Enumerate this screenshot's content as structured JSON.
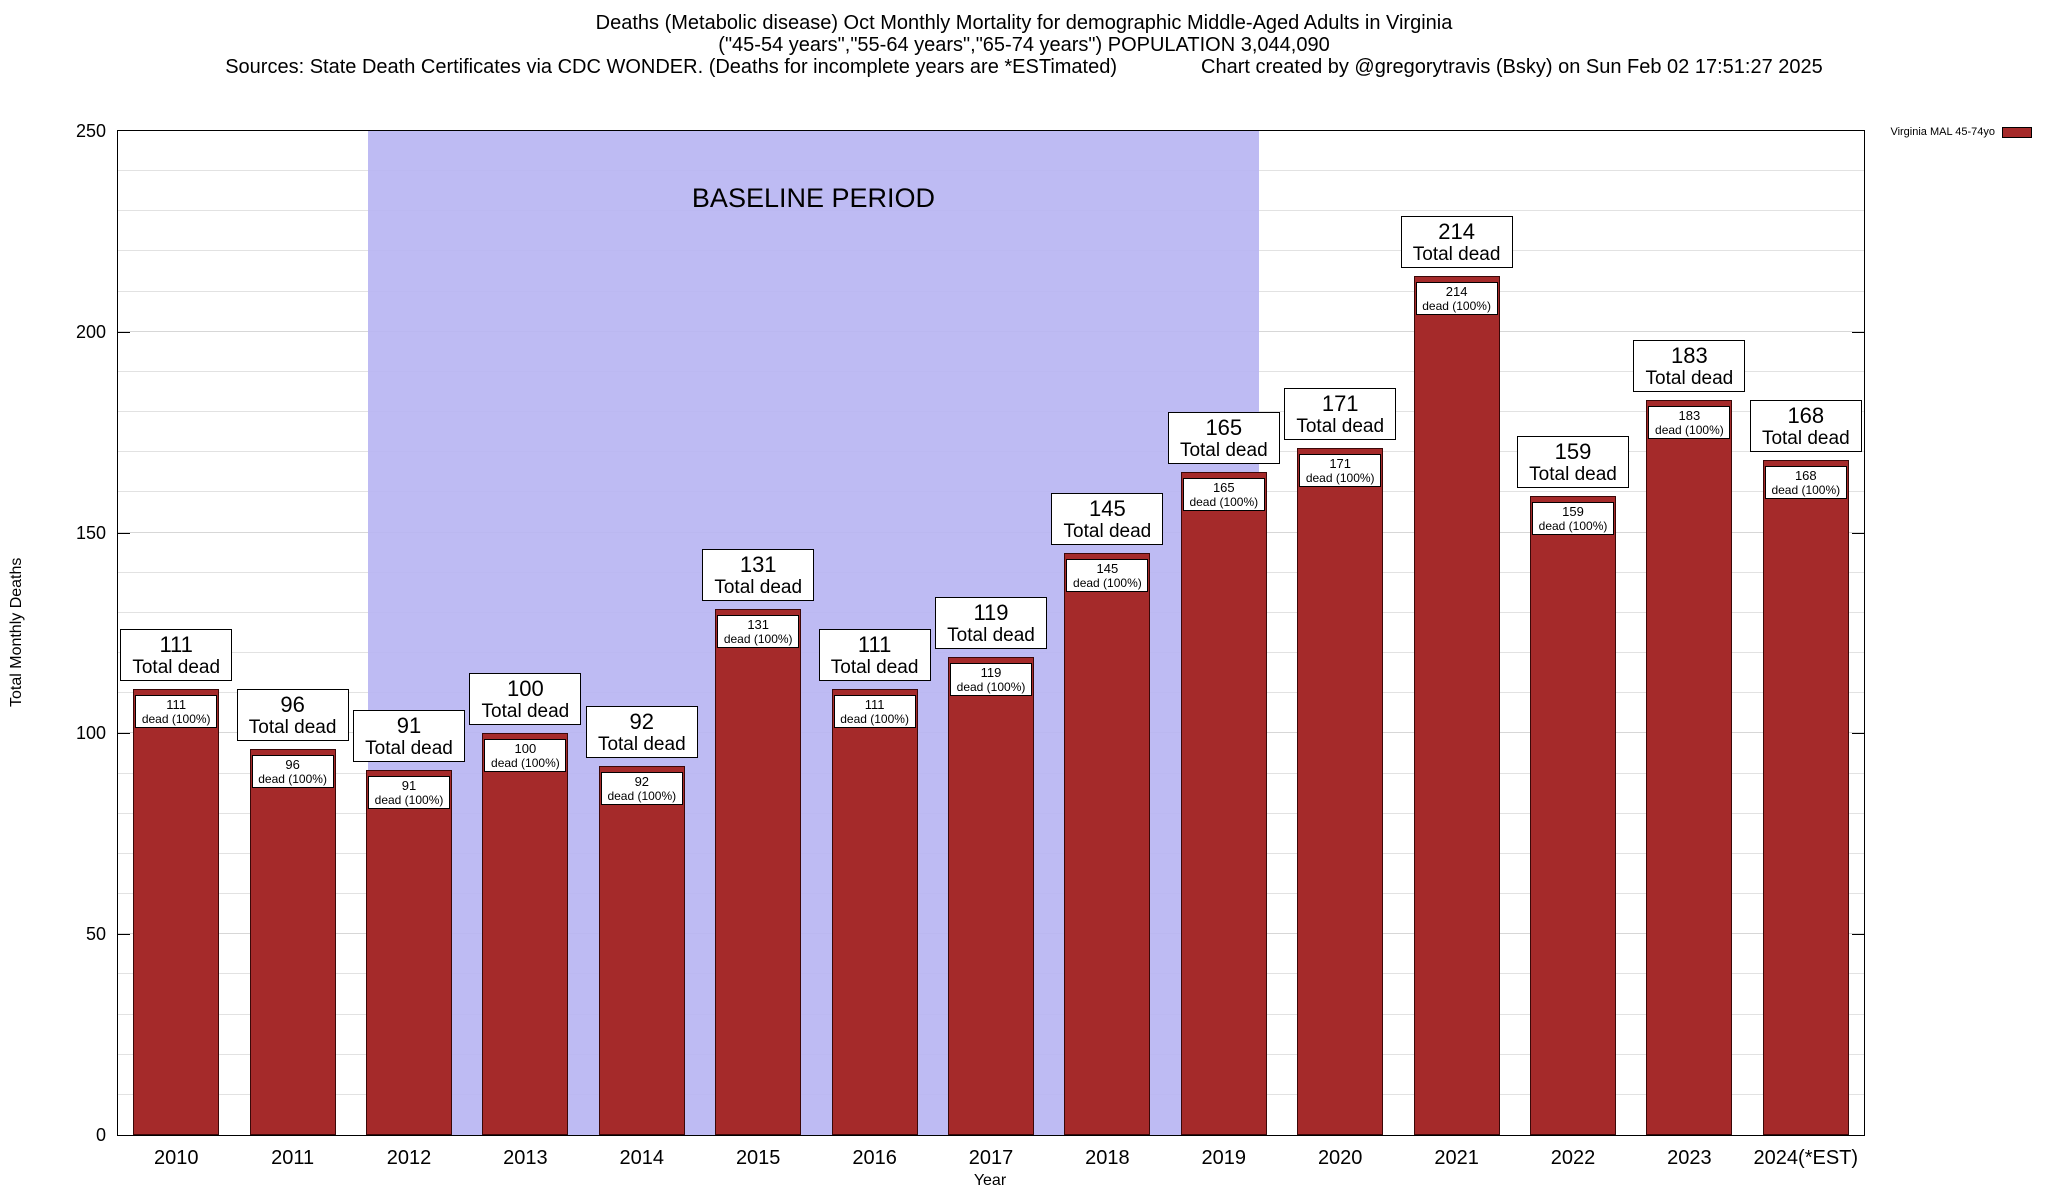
{
  "header": {
    "title_line1": "Deaths (Metabolic disease) Oct Monthly Mortality for demographic Middle-Aged Adults in Virginia",
    "title_line2": "(\"45-54 years\",\"55-64 years\",\"65-74 years\") POPULATION 3,044,090",
    "sources": "Sources: State Death Certificates via CDC WONDER. (Deaths for incomplete years are *ESTimated)",
    "credit": "Chart created by @gregorytravis (Bsky) on Sun Feb 02 17:51:27 2025"
  },
  "legend": {
    "label": "Virginia MAL 45-74yo",
    "swatch_color": "#A52A2A"
  },
  "chart_data": {
    "type": "bar",
    "title": "Deaths (Metabolic disease) Oct Monthly Mortality for demographic Middle-Aged Adults in Virginia",
    "subtitle": "(\"45-54 years\",\"55-64 years\",\"65-74 years\") POPULATION 3,044,090",
    "xlabel": "Year",
    "ylabel": "Total Monthly Deaths",
    "ylim": [
      0,
      250
    ],
    "yticks": [
      0,
      50,
      100,
      150,
      200,
      250
    ],
    "minor_grid_step": 10,
    "grid": true,
    "legend_position": "top-right",
    "categories": [
      "2010",
      "2011",
      "2012",
      "2013",
      "2014",
      "2015",
      "2016",
      "2017",
      "2018",
      "2019",
      "2020",
      "2021",
      "2022",
      "2023",
      "2024(*EST)"
    ],
    "values": [
      111,
      96,
      91,
      100,
      92,
      131,
      111,
      119,
      145,
      165,
      171,
      214,
      159,
      183,
      168
    ],
    "bar_color": "#A52A2A",
    "bar_label_top_suffix": "Total dead",
    "bar_label_inner_suffix": "dead (100%)",
    "baseline": {
      "label": "BASELINE PERIOD",
      "start_category": "2012",
      "end_category": "2019",
      "color": "#B8B5F2"
    }
  }
}
